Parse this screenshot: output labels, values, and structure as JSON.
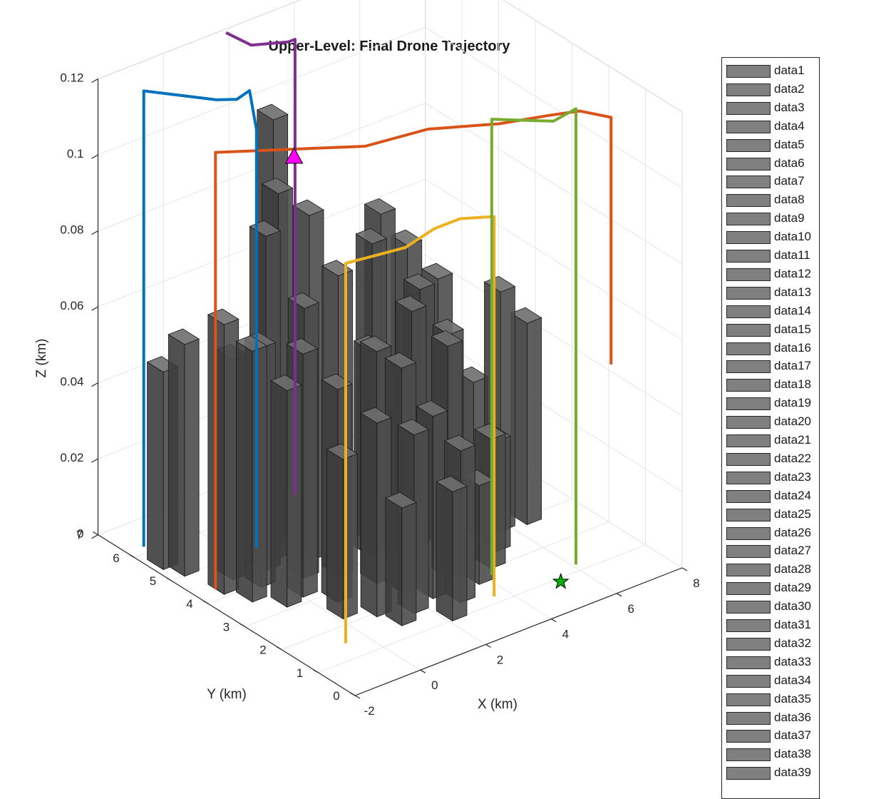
{
  "chart_data": {
    "type": "bar3d",
    "title": "Upper-Level: Final Drone Trajectory",
    "xlabel": "X (km)",
    "ylabel": "Y (km)",
    "zlabel": "Z (km)",
    "xlim": [
      -2,
      8
    ],
    "ylim": [
      0,
      7
    ],
    "zlim": [
      0,
      0.12
    ],
    "xticks": [
      "-2",
      "0",
      "2",
      "4",
      "6",
      "8"
    ],
    "yticks": [
      "0",
      "1",
      "2",
      "3",
      "4",
      "5",
      "6",
      "7"
    ],
    "zticks": [
      "0",
      "0.02",
      "0.04",
      "0.06",
      "0.08",
      "0.1",
      "0.12"
    ],
    "grid": true,
    "legend_position": "right-outside",
    "legend_entries": [
      "data1",
      "data2",
      "data3",
      "data4",
      "data5",
      "data6",
      "data7",
      "data8",
      "data9",
      "data10",
      "data11",
      "data12",
      "data13",
      "data14",
      "data15",
      "data16",
      "data17",
      "data18",
      "data19",
      "data20",
      "data21",
      "data22",
      "data23",
      "data24",
      "data25",
      "data26",
      "data27",
      "data28",
      "data29",
      "data30",
      "data31",
      "data32",
      "data33",
      "data34",
      "data35",
      "data36",
      "data37",
      "data38",
      "data39"
    ],
    "building_color": "#4d4d4d",
    "buildings": [
      {
        "x": -1.6,
        "y": 5.6,
        "h": 0.052
      },
      {
        "x": -1.4,
        "y": 5.2,
        "h": 0.061
      },
      {
        "x": -1.2,
        "y": 4.3,
        "h": 0.071
      },
      {
        "x": -0.6,
        "y": 4.6,
        "h": 0.058
      },
      {
        "x": -0.9,
        "y": 3.8,
        "h": 0.066
      },
      {
        "x": -0.3,
        "y": 4.1,
        "h": 0.063
      },
      {
        "x": -0.4,
        "y": 3.3,
        "h": 0.057
      },
      {
        "x": 0.3,
        "y": 4.5,
        "h": 0.088
      },
      {
        "x": 0.9,
        "y": 4.7,
        "h": 0.096
      },
      {
        "x": 1.2,
        "y": 5.1,
        "h": 0.112
      },
      {
        "x": 0.2,
        "y": 3.4,
        "h": 0.064
      },
      {
        "x": 0.8,
        "y": 3.9,
        "h": 0.071
      },
      {
        "x": 1.4,
        "y": 4.3,
        "h": 0.091
      },
      {
        "x": 1.5,
        "y": 3.6,
        "h": 0.079
      },
      {
        "x": 0.7,
        "y": 2.9,
        "h": 0.056
      },
      {
        "x": 1.0,
        "y": 2.1,
        "h": 0.051
      },
      {
        "x": 2.0,
        "y": 3.0,
        "h": 0.061
      },
      {
        "x": 2.2,
        "y": 2.5,
        "h": 0.059
      },
      {
        "x": 2.6,
        "y": 2.0,
        "h": 0.048
      },
      {
        "x": 3.1,
        "y": 4.1,
        "h": 0.079
      },
      {
        "x": 3.3,
        "y": 3.2,
        "h": 0.066
      },
      {
        "x": 3.7,
        "y": 4.4,
        "h": 0.083
      },
      {
        "x": 3.5,
        "y": 2.4,
        "h": 0.061
      },
      {
        "x": 4.0,
        "y": 3.6,
        "h": 0.067
      },
      {
        "x": 4.4,
        "y": 4.3,
        "h": 0.073
      },
      {
        "x": 4.1,
        "y": 2.9,
        "h": 0.059
      },
      {
        "x": 3.0,
        "y": 1.6,
        "h": 0.04
      },
      {
        "x": 2.3,
        "y": 1.2,
        "h": 0.034
      },
      {
        "x": 1.8,
        "y": 1.8,
        "h": 0.047
      },
      {
        "x": 5.0,
        "y": 4.0,
        "h": 0.064
      },
      {
        "x": 5.3,
        "y": 3.3,
        "h": 0.04
      },
      {
        "x": 5.9,
        "y": 3.1,
        "h": 0.063
      },
      {
        "x": 5.2,
        "y": 2.6,
        "h": 0.029
      },
      {
        "x": 4.6,
        "y": 2.2,
        "h": 0.034
      },
      {
        "x": 3.9,
        "y": 1.9,
        "h": 0.026
      },
      {
        "x": 1.2,
        "y": 1.6,
        "h": 0.031
      },
      {
        "x": 0.3,
        "y": 2.4,
        "h": 0.042
      },
      {
        "x": 2.7,
        "y": 3.8,
        "h": 0.054
      },
      {
        "x": 6.6,
        "y": 3.0,
        "h": 0.053
      }
    ],
    "series": [
      {
        "color": "#D95319",
        "points": [
          [
            -2.0,
            3.8,
            0.005
          ],
          [
            -2.0,
            3.8,
            0.12
          ],
          [
            -0.5,
            3.1,
            0.12
          ],
          [
            1.0,
            2.4,
            0.12
          ],
          [
            2.7,
            2.2,
            0.12
          ],
          [
            4.2,
            1.6,
            0.12
          ],
          [
            5.4,
            1.3,
            0.12
          ],
          [
            6.1,
            1.1,
            0.12
          ],
          [
            6.5,
            0.6,
            0.12
          ],
          [
            6.5,
            0.6,
            0.055
          ]
        ]
      },
      {
        "color": "#0072BD",
        "points": [
          [
            -1.5,
            6.2,
            0.0
          ],
          [
            -1.5,
            6.2,
            0.12
          ],
          [
            -0.4,
            5.2,
            0.12
          ],
          [
            0.0,
            5.0,
            0.12
          ],
          [
            0.5,
            5.1,
            0.12
          ],
          [
            0.6,
            5.0,
            0.11
          ],
          [
            0.6,
            5.0,
            0.0
          ]
        ]
      },
      {
        "color": "#EDB120",
        "points": [
          [
            -0.6,
            1.5,
            0.0
          ],
          [
            -0.6,
            1.5,
            0.1
          ],
          [
            1.0,
            1.3,
            0.1
          ],
          [
            2.1,
            1.5,
            0.1
          ],
          [
            2.9,
            1.5,
            0.1
          ],
          [
            3.6,
            1.2,
            0.1
          ],
          [
            3.6,
            1.2,
            0.0
          ]
        ]
      },
      {
        "color": "#7E2F8E",
        "points": [
          [
            1.8,
            6.9,
            0.12
          ],
          [
            1.9,
            6.3,
            0.12
          ],
          [
            2.7,
            6.0,
            0.12
          ],
          [
            2.9,
            6.0,
            0.12
          ],
          [
            2.9,
            6.0,
            0.0
          ]
        ]
      },
      {
        "color": "#77AC30",
        "points": [
          [
            4.2,
            1.8,
            0.0
          ],
          [
            4.2,
            1.8,
            0.12
          ],
          [
            5.3,
            1.1,
            0.12
          ],
          [
            6.1,
            1.2,
            0.12
          ],
          [
            6.1,
            1.2,
            0.0
          ]
        ]
      }
    ],
    "markers": [
      {
        "shape": "triangle",
        "color": "#FF00FF",
        "x": 1.3,
        "y": 4.6,
        "z": 0.103
      },
      {
        "shape": "star",
        "color": "#00B000",
        "x": 5.3,
        "y": 0.9,
        "z": 0.0
      }
    ]
  }
}
